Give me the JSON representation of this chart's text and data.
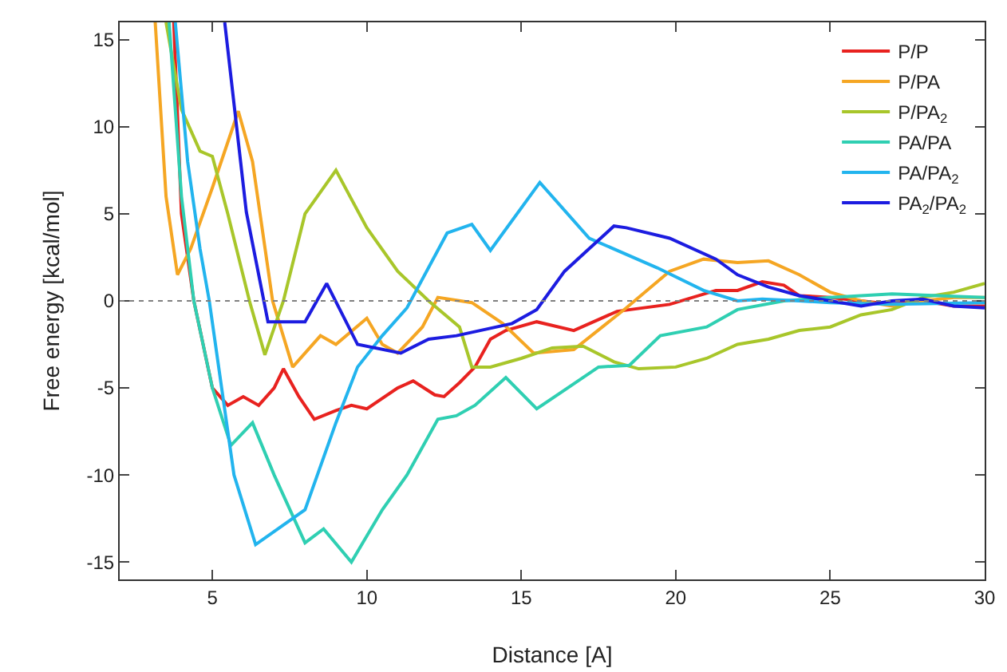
{
  "chart_data": {
    "type": "line",
    "xlabel": "Distance [A]",
    "ylabel": "Free energy [kcal/mol]",
    "xlim": [
      2,
      30
    ],
    "xticks": [
      5,
      10,
      15,
      20,
      25,
      30
    ],
    "ylim": [
      -16,
      16
    ],
    "yticks": [
      -15,
      -10,
      -5,
      0,
      5,
      10,
      15
    ],
    "grid": false,
    "legend": "top right",
    "marker": "none",
    "line_style": "solid",
    "ref_lines": [
      {
        "axis": "y",
        "value": 0,
        "color": "#808080",
        "line_style": "dotted"
      }
    ],
    "series": [
      {
        "name": "P/P",
        "color": "#e8221f",
        "x": [
          3.75,
          4.0,
          4.4,
          5.0,
          5.5,
          6.0,
          6.5,
          7.0,
          7.3,
          7.8,
          8.3,
          9.0,
          9.5,
          10.0,
          11.0,
          11.5,
          12.2,
          12.5,
          13.0,
          13.5,
          14.0,
          14.5,
          15.5,
          16.7,
          18.1,
          19.8,
          21.3,
          22.0,
          22.8,
          23.5,
          24.0,
          25.0,
          26.0,
          27.0,
          28.0,
          29.0,
          30.0
        ],
        "values": [
          16,
          5,
          0,
          -5,
          -6,
          -5.5,
          -6,
          -5,
          -3.9,
          -5.5,
          -6.8,
          -6.3,
          -6,
          -6.2,
          -5,
          -4.6,
          -5.4,
          -5.5,
          -4.7,
          -3.8,
          -2.2,
          -1.7,
          -1.2,
          -1.7,
          -0.6,
          -0.2,
          0.6,
          0.6,
          1.1,
          0.9,
          0.3,
          0.2,
          0,
          -0.2,
          0,
          -0.3,
          -0.3
        ]
      },
      {
        "name": "P/PA",
        "color": "#f5a623",
        "x": [
          3.15,
          3.5,
          3.87,
          4.3,
          5.0,
          5.84,
          6.3,
          6.95,
          7.6,
          8.5,
          9.0,
          10.0,
          10.5,
          11.0,
          11.8,
          12.3,
          13.4,
          14.4,
          15.4,
          16.7,
          18.4,
          19.8,
          20.9,
          22.0,
          23.0,
          24.0,
          25.0,
          26.0,
          27.0,
          28.0,
          29.0,
          30.0
        ],
        "values": [
          16,
          6,
          1.5,
          3,
          6.5,
          10.9,
          8,
          0,
          -3.8,
          -2,
          -2.5,
          -1,
          -2.5,
          -3,
          -1.5,
          0.2,
          -0.1,
          -1.3,
          -3,
          -2.8,
          -0.4,
          1.7,
          2.4,
          2.2,
          2.3,
          1.5,
          0.5,
          0,
          -0.3,
          0,
          0.2,
          0.2
        ]
      },
      {
        "name": "P/PA$_{2}$",
        "color": "#a8c62a",
        "x": [
          3.5,
          4.0,
          4.6,
          5.0,
          5.5,
          6.2,
          6.7,
          7.3,
          8.0,
          9.0,
          10.0,
          11.0,
          12.0,
          13.0,
          13.4,
          14.0,
          15.0,
          16.0,
          17.0,
          18.0,
          18.8,
          20.0,
          21.0,
          22.0,
          23.0,
          24.0,
          25.0,
          26.0,
          27.0,
          28.0,
          29.0,
          30.0
        ],
        "values": [
          16,
          11,
          8.6,
          8.3,
          5,
          0,
          -3.1,
          0,
          5,
          7.5,
          4.2,
          1.7,
          0,
          -1.5,
          -3.8,
          -3.8,
          -3.3,
          -2.7,
          -2.6,
          -3.5,
          -3.9,
          -3.8,
          -3.3,
          -2.5,
          -2.2,
          -1.7,
          -1.5,
          -0.8,
          -0.5,
          0.2,
          0.5,
          1
        ]
      },
      {
        "name": "PA/PA",
        "color": "#2fcfb2",
        "x": [
          3.6,
          4.0,
          4.4,
          5.0,
          5.6,
          6.3,
          7.0,
          8.0,
          8.6,
          9.5,
          10.5,
          11.3,
          12.3,
          12.9,
          13.5,
          14.5,
          15.5,
          16.5,
          17.5,
          18.5,
          19.5,
          21.0,
          22.0,
          23.5,
          25.0,
          27.0,
          30.0
        ],
        "values": [
          16,
          6,
          0,
          -5,
          -8.3,
          -7,
          -10,
          -13.9,
          -13.1,
          -15,
          -12,
          -10,
          -6.8,
          -6.6,
          -6,
          -4.4,
          -6.2,
          -5,
          -3.8,
          -3.7,
          -2,
          -1.5,
          -0.5,
          0,
          0.2,
          0.4,
          0.2
        ]
      },
      {
        "name": "PA/PA$_{2}$",
        "color": "#22b4ee",
        "x": [
          3.8,
          4.2,
          4.6,
          4.9,
          5.3,
          5.7,
          6.4,
          8.0,
          9.0,
          9.7,
          10.5,
          11.3,
          12.6,
          13.4,
          14.0,
          15.6,
          17.2,
          19.4,
          20.9,
          22.0,
          22.8,
          24.0,
          25.0,
          27.0,
          30.0
        ],
        "values": [
          16,
          8,
          3,
          0,
          -5,
          -10,
          -14,
          -12,
          -7,
          -3.8,
          -2,
          -0.4,
          3.9,
          4.4,
          2.9,
          6.8,
          3.6,
          1.9,
          0.6,
          0,
          0.1,
          0,
          -0.1,
          -0.2,
          -0.1
        ]
      },
      {
        "name": "PA$_{2}$/PA$_{2}$",
        "color": "#1c1ce0",
        "x": [
          5.4,
          6.1,
          6.8,
          8.0,
          8.7,
          9.7,
          11.1,
          12.0,
          12.9,
          14.7,
          15.5,
          16.4,
          17.2,
          18.0,
          18.4,
          19.8,
          21.3,
          22.0,
          23.0,
          24.0,
          25.0,
          26.0,
          27.0,
          28.0,
          29.0,
          30.0
        ],
        "values": [
          16,
          5.1,
          -1.2,
          -1.2,
          1.0,
          -2.5,
          -3.0,
          -2.2,
          -2.0,
          -1.3,
          -0.5,
          1.7,
          3.0,
          4.3,
          4.2,
          3.6,
          2.4,
          1.5,
          0.8,
          0.3,
          0,
          -0.3,
          0,
          0.1,
          -0.3,
          -0.4
        ]
      }
    ]
  }
}
